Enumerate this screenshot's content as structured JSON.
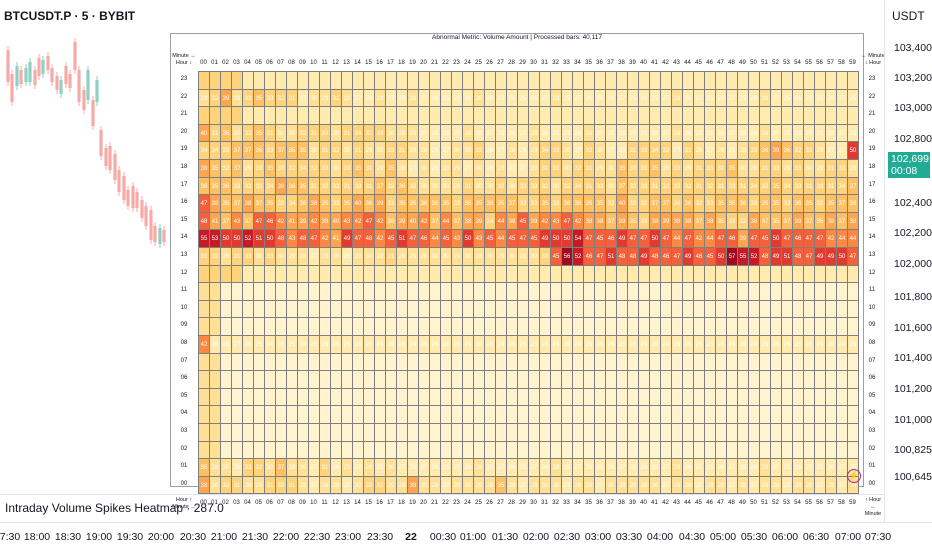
{
  "header": {
    "symbol": "BTCUSDT.P · 5 · BYBIT",
    "currency": "USDT"
  },
  "price_axis": {
    "ticks": [
      "103,400.0",
      "103,200.0",
      "103,000.0",
      "102,800.0",
      "102,400.0",
      "102,200.0",
      "102,000.0",
      "101,800.0",
      "101,600.0",
      "101,400.0",
      "101,200.0",
      "101,000.0",
      "100,825.0",
      "100,645.0"
    ],
    "current_price": "102,699.9",
    "countdown": "00:08"
  },
  "time_axis": {
    "ticks": [
      "7:30",
      "18:00",
      "18:30",
      "19:00",
      "19:30",
      "20:00",
      "20:30",
      "21:00",
      "21:30",
      "22:00",
      "22:30",
      "23:00",
      "23:30",
      "22",
      "00:30",
      "01:00",
      "01:30",
      "02:00",
      "02:30",
      "03:00",
      "03:30",
      "04:00",
      "04:30",
      "05:00",
      "05:30",
      "06:00",
      "06:30",
      "07:00",
      "07:30"
    ]
  },
  "indicator": {
    "label": "Intraday Volume Spikes Heatmap · 287.0"
  },
  "heatmap": {
    "title": "Abnormal Metric: Volume Amount | Processed bars: 40,117",
    "corner_top_left": "Minute → Hour ↓",
    "corner_top_right": "← Minute ↓ Hour",
    "corner_bottom_left": "Hour ↑ Minute →",
    "corner_bottom_right": "↑ Hour ← Minute",
    "minutes": [
      "00",
      "01",
      "02",
      "03",
      "04",
      "05",
      "06",
      "07",
      "08",
      "09",
      "10",
      "11",
      "12",
      "13",
      "14",
      "15",
      "16",
      "17",
      "18",
      "19",
      "20",
      "21",
      "22",
      "23",
      "24",
      "25",
      "26",
      "27",
      "28",
      "29",
      "30",
      "31",
      "32",
      "33",
      "34",
      "35",
      "36",
      "37",
      "38",
      "39",
      "40",
      "41",
      "42",
      "43",
      "44",
      "45",
      "46",
      "47",
      "48",
      "49",
      "50",
      "51",
      "52",
      "53",
      "54",
      "55",
      "56",
      "57",
      "58",
      "59"
    ],
    "hours": [
      "23",
      "22",
      "21",
      "20",
      "19",
      "18",
      "17",
      "16",
      "15",
      "14",
      "13",
      "12",
      "11",
      "10",
      "09",
      "08",
      "07",
      "06",
      "05",
      "04",
      "03",
      "02",
      "01",
      "00"
    ],
    "rows": {
      "22": "29 32 39 28 33 35 33 32 31 27 30 29 31 28 27 26 29 27 25 28 27 26 25 27 26 28 25 27 26 25 26 27 28 25 27 26 25 26 27 25 26 25 27 28 26 27 25 26 27 25 26 28 27 25 26 27 25 26 27 25",
      "20": "40 31 36 30 33 35 31 30 30 32 31 33 30 31 34 32 33 30 28 29 27 26 25 27 28 26 27 25 26 27 28 26 25 27 26 28 27 25 26 27 25 26 27 28 26 27 25 26 27 25 26 28 27 25 26 27 25 26 27 25",
      "19": "34 34 33 37 37 36 33 37 35 35 30 31 32 30 31 29 30 33 31 29 28 26 27 30 30 32 26 27 28 26 29 34 33 30 27 32 30 27 26 31 33 34 32 27 31 28 27 28 25 28 33 36 39 36 32 33 29 27 27 50",
      "18": "38 35 32 37 29 33 35 33 32 34 32 33 30 33 35 31 29 35 28 27 30 26 28 29 27 30 26 28 27 27 29 31 33 30 32 31 29 30 35 33 33 35 29 33 29 31 33 31 35 30 28 31 33 29 33 30 29 31 33 28",
      "17": "36 35 36 33 33 33 34 38 36 35 31 32 33 31 33 31 37 33 36 32 30 30 30 28 31 30 30 32 30 33 33 32 30 32 34 31 33 30 37 33 33 31 32 33 32 31 32 31 33 31 34 32 35 34 33 31 33 31 34 37",
      "16": "47 38 35 37 38 37 35 33 34 36 38 35 33 35 40 36 39 33 35 35 36 36 35 33 35 35 36 35 37 33 33 35 33 36 36 35 35 33 40 33 32 37 37 34 36 32 33 35 35 36 33 35 35 33 36 35 32 35 37 36",
      "15": "48 41 37 43 37 47 46 42 41 39 42 39 40 43 42 47 42 36 39 40 42 37 44 37 38 39 34 44 38 45 39 42 43 47 42 38 38 37 39 35 33 38 39 39 38 37 38 35 33 32 38 37 35 37 39 37 35 38 37 38",
      "14": "55 53 50 50 52 51 50 48 43 48 47 42 41 49 47 48 42 45 51 47 46 44 45 43 50 43 45 44 45 47 45 49 50 50 54 47 45 46 49 47 47 50 47 44 47 42 44 47 46 39 47 45 50 47 46 47 47 42 44 44",
      "13": "33 32 29 31 33 30 33 30 29 28 27 28 30 26 29 30 28 31 29 29 28 30 30 29 30 28 30 29 30 28 30 33 45 56 52 46 47 51 48 48 49 48 46 47 49 46 45 50 57 55 52 48 49 51 48 47 49 49 50 47",
      "08": "42 26 25 27 26 25 24 26 25 24 25 26 25 24 26 25 24 25 26 24 25 24 26 25 24 25 26 24 25 24 25 26 24 25 24 26 25 24 25 26 24 25 24 26 25 24 25 26 24 25 24 26 25 24 25 26 24 25 24 26",
      "01": "35 28 30 26 33 32 30 37 28 30 27 31 26 29 27 28 25 30 27 26 27 26 25 27 26 28 25 27 26 25 27 26 28 25 27 26 25 26 27 25 26 25 27 28 26 27 25 26 27 25 26 28 27 25 26 27 25 26 27 25",
      "00": "38 30 32 31 28 29 31 33 31 28 27 28 29 27 30 33 32 29 28 39 30 28 27 29 30 29 28 35 29 27 29 30 28 27 29 28 27 30 28 29 28 30 27 29 28 27 28 29 27 28 27 29 28 27 28 29 27 28 27 28"
    }
  }
}
